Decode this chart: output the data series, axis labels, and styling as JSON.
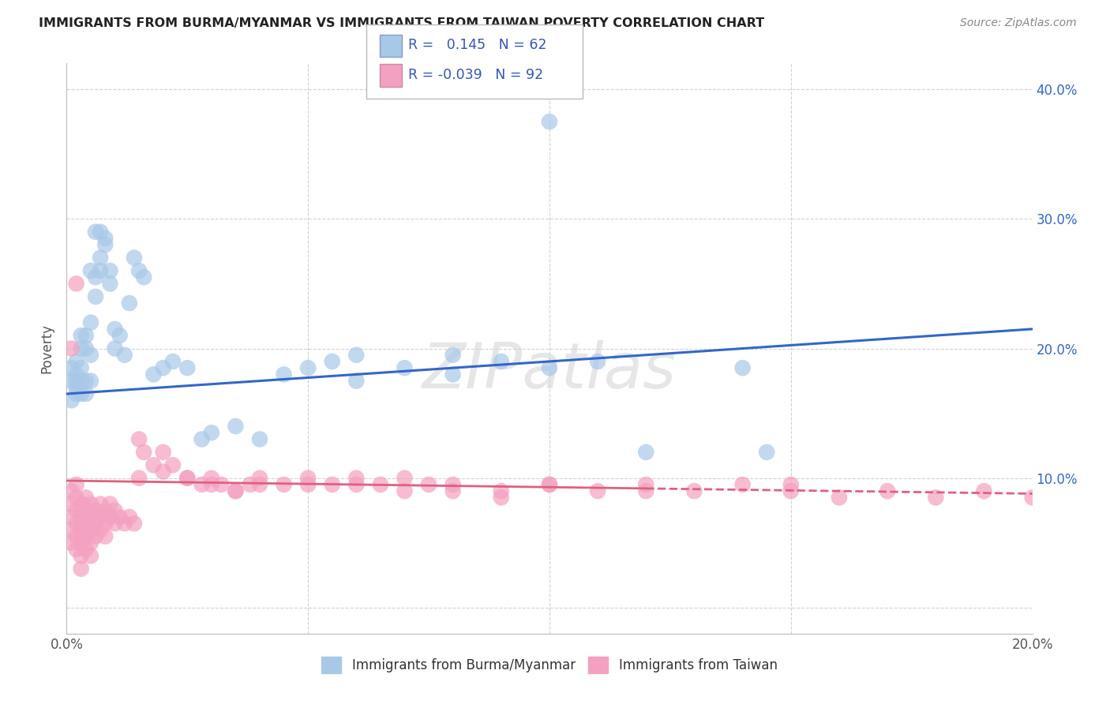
{
  "title": "IMMIGRANTS FROM BURMA/MYANMAR VS IMMIGRANTS FROM TAIWAN POVERTY CORRELATION CHART",
  "source": "Source: ZipAtlas.com",
  "ylabel": "Poverty",
  "xlim": [
    0.0,
    0.2
  ],
  "ylim": [
    -0.02,
    0.42
  ],
  "burma_color": "#a8c8e8",
  "taiwan_color": "#f4a0c0",
  "burma_line_color": "#3366cc",
  "taiwan_line_color": "#e06080",
  "burma_R": 0.145,
  "burma_N": 62,
  "taiwan_R": -0.039,
  "taiwan_N": 92,
  "legend_label_burma": "Immigrants from Burma/Myanmar",
  "legend_label_taiwan": "Immigrants from Taiwan",
  "watermark": "ZIPatlas",
  "background_color": "#ffffff",
  "burma_line_y0": 0.165,
  "burma_line_y1": 0.215,
  "taiwan_line_y0": 0.098,
  "taiwan_line_y1": 0.088,
  "burma_x": [
    0.001,
    0.001,
    0.001,
    0.002,
    0.002,
    0.002,
    0.002,
    0.002,
    0.003,
    0.003,
    0.003,
    0.003,
    0.003,
    0.004,
    0.004,
    0.004,
    0.004,
    0.005,
    0.005,
    0.005,
    0.005,
    0.006,
    0.006,
    0.006,
    0.007,
    0.007,
    0.007,
    0.008,
    0.008,
    0.009,
    0.009,
    0.01,
    0.01,
    0.011,
    0.012,
    0.013,
    0.014,
    0.015,
    0.016,
    0.018,
    0.02,
    0.022,
    0.025,
    0.028,
    0.03,
    0.035,
    0.04,
    0.045,
    0.05,
    0.055,
    0.06,
    0.07,
    0.08,
    0.09,
    0.1,
    0.11,
    0.12,
    0.14,
    0.06,
    0.08,
    0.1,
    0.145
  ],
  "burma_y": [
    0.175,
    0.16,
    0.185,
    0.17,
    0.165,
    0.175,
    0.18,
    0.19,
    0.175,
    0.165,
    0.2,
    0.185,
    0.21,
    0.175,
    0.165,
    0.21,
    0.2,
    0.22,
    0.195,
    0.175,
    0.26,
    0.255,
    0.24,
    0.29,
    0.26,
    0.27,
    0.29,
    0.28,
    0.285,
    0.25,
    0.26,
    0.2,
    0.215,
    0.21,
    0.195,
    0.235,
    0.27,
    0.26,
    0.255,
    0.18,
    0.185,
    0.19,
    0.185,
    0.13,
    0.135,
    0.14,
    0.13,
    0.18,
    0.185,
    0.19,
    0.175,
    0.185,
    0.18,
    0.19,
    0.185,
    0.19,
    0.12,
    0.185,
    0.195,
    0.195,
    0.375,
    0.12
  ],
  "taiwan_x": [
    0.001,
    0.001,
    0.001,
    0.001,
    0.001,
    0.002,
    0.002,
    0.002,
    0.002,
    0.002,
    0.002,
    0.003,
    0.003,
    0.003,
    0.003,
    0.003,
    0.003,
    0.004,
    0.004,
    0.004,
    0.004,
    0.004,
    0.005,
    0.005,
    0.005,
    0.005,
    0.005,
    0.006,
    0.006,
    0.006,
    0.007,
    0.007,
    0.007,
    0.008,
    0.008,
    0.008,
    0.009,
    0.009,
    0.01,
    0.01,
    0.011,
    0.012,
    0.013,
    0.014,
    0.015,
    0.016,
    0.018,
    0.02,
    0.022,
    0.025,
    0.028,
    0.03,
    0.032,
    0.035,
    0.038,
    0.04,
    0.045,
    0.05,
    0.055,
    0.06,
    0.065,
    0.07,
    0.075,
    0.08,
    0.09,
    0.1,
    0.11,
    0.12,
    0.13,
    0.14,
    0.15,
    0.16,
    0.17,
    0.18,
    0.19,
    0.2,
    0.015,
    0.02,
    0.025,
    0.03,
    0.035,
    0.04,
    0.05,
    0.06,
    0.07,
    0.08,
    0.09,
    0.1,
    0.12,
    0.15,
    0.001,
    0.002
  ],
  "taiwan_y": [
    0.09,
    0.08,
    0.07,
    0.06,
    0.05,
    0.085,
    0.075,
    0.065,
    0.055,
    0.045,
    0.095,
    0.08,
    0.07,
    0.06,
    0.05,
    0.04,
    0.03,
    0.085,
    0.075,
    0.065,
    0.055,
    0.045,
    0.08,
    0.07,
    0.06,
    0.05,
    0.04,
    0.075,
    0.065,
    0.055,
    0.08,
    0.07,
    0.06,
    0.075,
    0.065,
    0.055,
    0.08,
    0.07,
    0.075,
    0.065,
    0.07,
    0.065,
    0.07,
    0.065,
    0.13,
    0.12,
    0.11,
    0.12,
    0.11,
    0.1,
    0.095,
    0.1,
    0.095,
    0.09,
    0.095,
    0.1,
    0.095,
    0.1,
    0.095,
    0.1,
    0.095,
    0.1,
    0.095,
    0.09,
    0.085,
    0.095,
    0.09,
    0.095,
    0.09,
    0.095,
    0.09,
    0.085,
    0.09,
    0.085,
    0.09,
    0.085,
    0.1,
    0.105,
    0.1,
    0.095,
    0.09,
    0.095,
    0.095,
    0.095,
    0.09,
    0.095,
    0.09,
    0.095,
    0.09,
    0.095,
    0.2,
    0.25
  ]
}
